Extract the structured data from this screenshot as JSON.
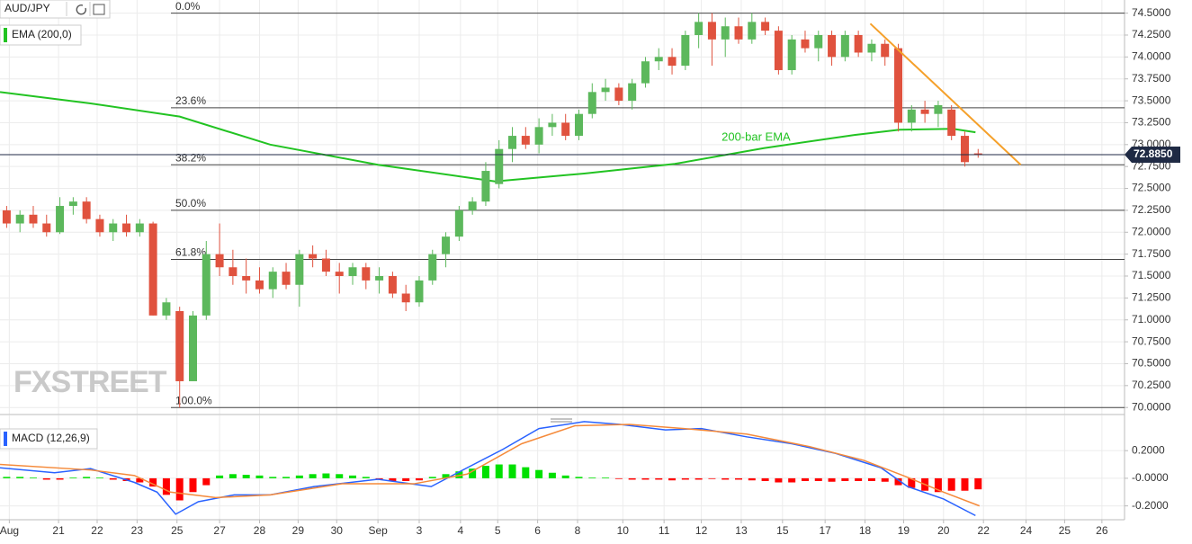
{
  "chart_data": [
    {
      "type": "candlestick",
      "symbol": "AUD/JPY",
      "indicator": "EMA (200,0)",
      "watermark": "FXSTREET",
      "ylim": [
        69.92,
        74.65
      ],
      "xlim": [
        0,
        84.5
      ],
      "yticks": [
        {
          "value": 74.5,
          "label": "74.5000"
        },
        {
          "value": 74.25,
          "label": "74.2500"
        },
        {
          "value": 74.0,
          "label": "74.0000"
        },
        {
          "value": 73.75,
          "label": "73.7500"
        },
        {
          "value": 73.5,
          "label": "73.5000"
        },
        {
          "value": 73.25,
          "label": "73.2500"
        },
        {
          "value": 73.0,
          "label": "73.0000"
        },
        {
          "value": 72.75,
          "label": "72.7500"
        },
        {
          "value": 72.5,
          "label": "72.5000"
        },
        {
          "value": 72.25,
          "label": "72.2500"
        },
        {
          "value": 72.0,
          "label": "72.0000"
        },
        {
          "value": 71.75,
          "label": "71.7500"
        },
        {
          "value": 71.5,
          "label": "71.5000"
        },
        {
          "value": 71.25,
          "label": "71.2500"
        },
        {
          "value": 71.0,
          "label": "71.0000"
        },
        {
          "value": 70.75,
          "label": "70.7500"
        },
        {
          "value": 70.5,
          "label": "70.5000"
        },
        {
          "value": 70.25,
          "label": "70.2500"
        },
        {
          "value": 70.0,
          "label": "70.0000"
        }
      ],
      "up_color": "#5cb85c",
      "down_color": "#e0523e",
      "candles": [
        [
          72.25,
          72.3,
          72.05,
          72.1
        ],
        [
          72.1,
          72.25,
          72.0,
          72.2
        ],
        [
          72.2,
          72.3,
          72.05,
          72.1
        ],
        [
          72.1,
          72.2,
          71.95,
          72.0
        ],
        [
          72.0,
          72.4,
          71.98,
          72.3
        ],
        [
          72.3,
          72.4,
          72.2,
          72.35
        ],
        [
          72.35,
          72.4,
          72.1,
          72.15
        ],
        [
          72.15,
          72.2,
          71.95,
          72.0
        ],
        [
          72.0,
          72.15,
          71.9,
          72.1
        ],
        [
          72.1,
          72.2,
          71.95,
          72.0
        ],
        [
          72.0,
          72.15,
          71.95,
          72.1
        ],
        [
          72.1,
          72.12,
          71.05,
          71.05
        ],
        [
          71.05,
          71.25,
          71.0,
          71.2
        ],
        [
          71.1,
          71.15,
          70.0,
          70.3
        ],
        [
          70.3,
          71.1,
          70.3,
          71.05
        ],
        [
          71.05,
          71.9,
          71.0,
          71.75
        ],
        [
          71.75,
          72.1,
          71.5,
          71.6
        ],
        [
          71.6,
          71.8,
          71.4,
          71.5
        ],
        [
          71.5,
          71.7,
          71.3,
          71.45
        ],
        [
          71.45,
          71.6,
          71.3,
          71.35
        ],
        [
          71.35,
          71.6,
          71.25,
          71.55
        ],
        [
          71.55,
          71.65,
          71.35,
          71.4
        ],
        [
          71.4,
          71.8,
          71.15,
          71.75
        ],
        [
          71.75,
          71.85,
          71.6,
          71.7
        ],
        [
          71.7,
          71.8,
          71.5,
          71.55
        ],
        [
          71.55,
          71.65,
          71.3,
          71.5
        ],
        [
          71.5,
          71.65,
          71.4,
          71.6
        ],
        [
          71.6,
          71.65,
          71.35,
          71.45
        ],
        [
          71.45,
          71.6,
          71.3,
          71.5
        ],
        [
          71.5,
          71.55,
          71.25,
          71.3
        ],
        [
          71.3,
          71.4,
          71.1,
          71.2
        ],
        [
          71.2,
          71.5,
          71.15,
          71.45
        ],
        [
          71.45,
          71.8,
          71.4,
          71.75
        ],
        [
          71.75,
          72.0,
          71.6,
          71.95
        ],
        [
          71.95,
          72.3,
          71.9,
          72.25
        ],
        [
          72.25,
          72.4,
          72.2,
          72.35
        ],
        [
          72.35,
          72.8,
          72.3,
          72.7
        ],
        [
          72.55,
          73.05,
          72.5,
          72.95
        ],
        [
          72.95,
          73.2,
          72.8,
          73.1
        ],
        [
          73.1,
          73.2,
          72.95,
          73.0
        ],
        [
          73.0,
          73.3,
          72.9,
          73.2
        ],
        [
          73.2,
          73.35,
          73.1,
          73.25
        ],
        [
          73.25,
          73.35,
          73.05,
          73.1
        ],
        [
          73.1,
          73.4,
          73.05,
          73.35
        ],
        [
          73.35,
          73.7,
          73.3,
          73.6
        ],
        [
          73.6,
          73.75,
          73.5,
          73.65
        ],
        [
          73.65,
          73.7,
          73.45,
          73.5
        ],
        [
          73.5,
          73.75,
          73.4,
          73.7
        ],
        [
          73.7,
          74.0,
          73.65,
          73.95
        ],
        [
          73.95,
          74.1,
          73.85,
          74.0
        ],
        [
          74.0,
          74.1,
          73.8,
          73.9
        ],
        [
          73.9,
          74.3,
          73.85,
          74.25
        ],
        [
          74.25,
          74.5,
          74.1,
          74.4
        ],
        [
          74.4,
          74.5,
          73.9,
          74.2
        ],
        [
          74.2,
          74.45,
          74.0,
          74.35
        ],
        [
          74.35,
          74.45,
          74.15,
          74.2
        ],
        [
          74.2,
          74.5,
          74.15,
          74.4
        ],
        [
          74.4,
          74.45,
          74.25,
          74.3
        ],
        [
          74.3,
          74.35,
          73.8,
          73.85
        ],
        [
          73.85,
          74.25,
          73.8,
          74.2
        ],
        [
          74.2,
          74.3,
          74.05,
          74.1
        ],
        [
          74.1,
          74.3,
          73.95,
          74.25
        ],
        [
          74.25,
          74.3,
          73.9,
          74.0
        ],
        [
          74.0,
          74.3,
          73.95,
          74.25
        ],
        [
          74.25,
          74.3,
          74.0,
          74.05
        ],
        [
          74.05,
          74.2,
          73.95,
          74.15
        ],
        [
          74.15,
          74.2,
          73.9,
          74.0
        ],
        [
          74.1,
          74.15,
          73.15,
          73.25
        ],
        [
          73.25,
          73.45,
          73.15,
          73.4
        ],
        [
          73.4,
          73.5,
          73.25,
          73.35
        ],
        [
          73.35,
          73.5,
          73.2,
          73.45
        ],
        [
          73.4,
          73.45,
          73.05,
          73.1
        ],
        [
          73.1,
          73.15,
          72.75,
          72.8
        ],
        [
          72.9,
          72.95,
          72.85,
          72.885
        ]
      ],
      "series": [
        {
          "name": "200-bar EMA",
          "color": "#22c322",
          "x": [
            0,
            6.8,
            13.5,
            20.3,
            28.4,
            37.2,
            43.9,
            50.7,
            57.4,
            64.2,
            67.6,
            71.6,
            73.3
          ],
          "values": [
            73.6,
            73.47,
            73.32,
            73.0,
            72.77,
            72.58,
            72.67,
            72.78,
            72.96,
            73.11,
            73.17,
            73.18,
            73.14
          ]
        }
      ],
      "trendline": {
        "color": "#f5a02a",
        "x": [
          65.4,
          76.7
        ],
        "values": [
          74.38,
          72.77
        ]
      },
      "levels": [
        {
          "label": "0.0%",
          "value": 74.5
        },
        {
          "label": "23.6%",
          "value": 73.42
        },
        {
          "label": "38.2%",
          "value": 72.77
        },
        {
          "label": "50.0%",
          "value": 72.25
        },
        {
          "label": "61.8%",
          "value": 71.69
        },
        {
          "label": "100.0%",
          "value": 70.0
        }
      ],
      "last_price": {
        "value": 72.885,
        "label": "72.8850"
      }
    },
    {
      "type": "macd",
      "title": "MACD (12,26,9)",
      "ylim": [
        -0.3,
        0.455
      ],
      "xlim": [
        0,
        84.5
      ],
      "yticks": [
        {
          "value": 0.2,
          "label": "0.2000"
        },
        {
          "value": 0,
          "label": "-0.0000"
        },
        {
          "value": -0.2,
          "label": "-0.2000"
        }
      ],
      "xticks": [
        {
          "value": 0.7,
          "label": "Aug"
        },
        {
          "value": 4.4,
          "label": "21"
        },
        {
          "value": 7.3,
          "label": "22"
        },
        {
          "value": 10.3,
          "label": "23"
        },
        {
          "value": 13.3,
          "label": "25"
        },
        {
          "value": 16.5,
          "label": "27"
        },
        {
          "value": 19.5,
          "label": "28"
        },
        {
          "value": 22.4,
          "label": "29"
        },
        {
          "value": 25.3,
          "label": "30"
        },
        {
          "value": 28.4,
          "label": "Sep"
        },
        {
          "value": 31.5,
          "label": "3"
        },
        {
          "value": 34.6,
          "label": "4"
        },
        {
          "value": 37.4,
          "label": "5"
        },
        {
          "value": 40.4,
          "label": "6"
        },
        {
          "value": 43.4,
          "label": "8"
        },
        {
          "value": 46.8,
          "label": "10"
        },
        {
          "value": 49.9,
          "label": "11"
        },
        {
          "value": 52.7,
          "label": "12"
        },
        {
          "value": 55.7,
          "label": "13"
        },
        {
          "value": 58.8,
          "label": "15"
        },
        {
          "value": 62.0,
          "label": "17"
        },
        {
          "value": 65.0,
          "label": "18"
        },
        {
          "value": 67.9,
          "label": "19"
        },
        {
          "value": 70.9,
          "label": "20"
        },
        {
          "value": 73.9,
          "label": "22"
        },
        {
          "value": 77.1,
          "label": "24"
        },
        {
          "value": 80.0,
          "label": "25"
        },
        {
          "value": 82.8,
          "label": "26"
        }
      ],
      "histogram": {
        "up_color": "#00e000",
        "down_color": "#ff0000",
        "values": [
          0.01,
          0.01,
          0.005,
          -0.01,
          -0.01,
          0.005,
          0.01,
          0.005,
          -0.01,
          -0.02,
          -0.03,
          -0.06,
          -0.12,
          -0.16,
          -0.1,
          -0.05,
          0.02,
          0.03,
          0.025,
          0.02,
          0.01,
          0.01,
          0.02,
          0.03,
          0.035,
          0.03,
          0.02,
          0.01,
          -0.01,
          -0.02,
          -0.02,
          -0.015,
          0.01,
          0.03,
          0.05,
          0.07,
          0.09,
          0.1,
          0.1,
          0.08,
          0.06,
          0.04,
          0.02,
          0.01,
          0.005,
          0.005,
          -0.005,
          -0.01,
          -0.01,
          -0.01,
          -0.015,
          -0.01,
          -0.01,
          -0.005,
          -0.01,
          -0.01,
          -0.015,
          -0.02,
          -0.03,
          -0.03,
          -0.02,
          -0.02,
          -0.025,
          -0.02,
          -0.02,
          -0.02,
          -0.025,
          -0.05,
          -0.07,
          -0.09,
          -0.1,
          -0.09,
          -0.09,
          -0.08
        ]
      },
      "lines": [
        {
          "color": "#2962ff",
          "x": [
            0,
            4.1,
            6.8,
            10.1,
            11.8,
            13.2,
            14.9,
            17.6,
            20.3,
            23.6,
            28.4,
            32.4,
            35.1,
            37.8,
            40.5,
            43.9,
            46.6,
            50.0,
            52.7,
            56.1,
            59.5,
            62.8,
            66.2,
            68.2,
            70.9,
            73.3
          ],
          "values": [
            0.076,
            0.04,
            0.07,
            -0.03,
            -0.1,
            -0.26,
            -0.17,
            -0.12,
            -0.12,
            -0.06,
            -0.007,
            -0.06,
            0.076,
            0.21,
            0.36,
            0.41,
            0.39,
            0.35,
            0.36,
            0.3,
            0.25,
            0.18,
            0.076,
            -0.06,
            -0.15,
            -0.27
          ]
        },
        {
          "color": "#f58a3a",
          "x": [
            0,
            6.8,
            10.1,
            12.8,
            16.2,
            20.3,
            25.7,
            31.1,
            35.1,
            39.2,
            43.2,
            47.3,
            51.4,
            56.1,
            60.8,
            64.9,
            68.2,
            70.9,
            73.6
          ],
          "values": [
            0.1,
            0.06,
            0.02,
            -0.1,
            -0.14,
            -0.12,
            -0.04,
            -0.04,
            0.03,
            0.25,
            0.38,
            0.39,
            0.36,
            0.32,
            0.23,
            0.13,
            0.007,
            -0.1,
            -0.2
          ]
        }
      ]
    }
  ]
}
